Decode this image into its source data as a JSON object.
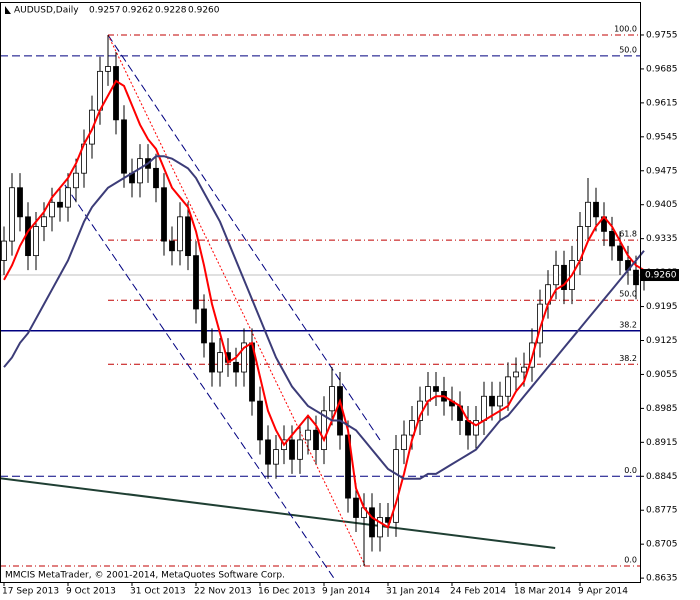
{
  "chart_data": {
    "type": "candlestick",
    "header": {
      "symbol": "AUDUSD,Daily",
      "values": [
        "0.9257",
        "0.9262",
        "0.9228",
        "0.9260"
      ]
    },
    "footer": "MMCIS MetaTrader, © 2001-2014, MetaQuotes Software Corp.",
    "categories": [
      "17 Sep 2013",
      null,
      null,
      null,
      null,
      null,
      null,
      null,
      "9 Oct 2013",
      null,
      null,
      null,
      null,
      null,
      null,
      null,
      "31 Oct 2013",
      null,
      null,
      null,
      null,
      null,
      null,
      null,
      "22 Nov 2013",
      null,
      null,
      null,
      null,
      null,
      null,
      null,
      "16 Dec 2013",
      null,
      null,
      null,
      null,
      null,
      null,
      null,
      "9 Jan 2014",
      null,
      null,
      null,
      null,
      null,
      null,
      null,
      "31 Jan 2014",
      null,
      null,
      null,
      null,
      null,
      null,
      null,
      "24 Feb 2014",
      null,
      null,
      null,
      null,
      null,
      null,
      null,
      "18 Mar 2014",
      null,
      null,
      null,
      null,
      null,
      null,
      null,
      "9 Apr 2014",
      null,
      null,
      null,
      null,
      null,
      null,
      null,
      null
    ],
    "open": [
      0.929,
      0.933,
      0.944,
      0.938,
      0.93,
      0.936,
      0.938,
      0.941,
      0.94,
      0.944,
      0.947,
      0.953,
      0.96,
      0.968,
      0.969,
      0.958,
      0.947,
      0.945,
      0.95,
      0.948,
      0.944,
      0.933,
      0.931,
      0.938,
      0.93,
      0.919,
      0.912,
      0.906,
      0.91,
      0.908,
      0.906,
      0.912,
      0.9,
      0.892,
      0.887,
      0.89,
      0.892,
      0.888,
      0.892,
      0.894,
      0.89,
      0.898,
      0.903,
      0.893,
      0.88,
      0.876,
      0.878,
      0.872,
      0.876,
      0.875,
      0.89,
      0.893,
      0.896,
      0.9,
      0.903,
      0.902,
      0.9,
      0.899,
      0.896,
      0.893,
      0.896,
      0.901,
      0.899,
      0.901,
      0.905,
      0.906,
      0.907,
      0.912,
      0.92,
      0.924,
      0.928,
      0.923,
      0.929,
      0.936,
      0.941,
      0.938,
      0.935,
      0.932,
      0.929,
      0.927,
      0.9257
    ],
    "high": [
      0.936,
      0.947,
      0.947,
      0.941,
      0.939,
      0.941,
      0.944,
      0.944,
      0.947,
      0.95,
      0.956,
      0.963,
      0.971,
      0.9755,
      0.972,
      0.961,
      0.95,
      0.953,
      0.953,
      0.951,
      0.947,
      0.936,
      0.941,
      0.941,
      0.933,
      0.922,
      0.915,
      0.913,
      0.913,
      0.911,
      0.915,
      0.915,
      0.903,
      0.895,
      0.893,
      0.895,
      0.895,
      0.895,
      0.897,
      0.897,
      0.901,
      0.907,
      0.906,
      0.896,
      0.883,
      0.881,
      0.881,
      0.879,
      0.879,
      0.893,
      0.896,
      0.899,
      0.903,
      0.906,
      0.906,
      0.905,
      0.903,
      0.902,
      0.899,
      0.899,
      0.904,
      0.904,
      0.904,
      0.908,
      0.909,
      0.91,
      0.915,
      0.923,
      0.927,
      0.931,
      0.931,
      0.932,
      0.939,
      0.946,
      0.944,
      0.941,
      0.938,
      0.935,
      0.932,
      0.93,
      0.9262
    ],
    "low": [
      0.926,
      0.93,
      0.935,
      0.927,
      0.927,
      0.933,
      0.935,
      0.937,
      0.937,
      0.941,
      0.944,
      0.95,
      0.957,
      0.965,
      0.955,
      0.944,
      0.942,
      0.942,
      0.945,
      0.941,
      0.93,
      0.928,
      0.928,
      0.927,
      0.916,
      0.909,
      0.903,
      0.903,
      0.905,
      0.903,
      0.903,
      0.897,
      0.889,
      0.884,
      0.884,
      0.887,
      0.885,
      0.885,
      0.889,
      0.887,
      0.887,
      0.895,
      0.89,
      0.877,
      0.873,
      0.866,
      0.869,
      0.869,
      0.872,
      0.872,
      0.887,
      0.89,
      0.893,
      0.897,
      0.899,
      0.897,
      0.896,
      0.893,
      0.89,
      0.89,
      0.893,
      0.896,
      0.896,
      0.898,
      0.902,
      0.903,
      0.904,
      0.909,
      0.917,
      0.921,
      0.92,
      0.92,
      0.926,
      0.933,
      0.935,
      0.932,
      0.929,
      0.926,
      0.924,
      0.921,
      0.9228
    ],
    "close": [
      0.933,
      0.944,
      0.938,
      0.93,
      0.936,
      0.938,
      0.941,
      0.94,
      0.944,
      0.947,
      0.953,
      0.96,
      0.968,
      0.969,
      0.958,
      0.947,
      0.945,
      0.95,
      0.948,
      0.944,
      0.933,
      0.931,
      0.938,
      0.93,
      0.919,
      0.912,
      0.906,
      0.91,
      0.908,
      0.906,
      0.912,
      0.9,
      0.892,
      0.887,
      0.89,
      0.892,
      0.888,
      0.892,
      0.894,
      0.89,
      0.898,
      0.903,
      0.893,
      0.88,
      0.876,
      0.878,
      0.872,
      0.876,
      0.875,
      0.89,
      0.893,
      0.896,
      0.9,
      0.903,
      0.902,
      0.9,
      0.899,
      0.896,
      0.893,
      0.896,
      0.901,
      0.899,
      0.901,
      0.905,
      0.906,
      0.907,
      0.912,
      0.92,
      0.924,
      0.928,
      0.923,
      0.929,
      0.936,
      0.941,
      0.938,
      0.935,
      0.932,
      0.929,
      0.927,
      0.924,
      0.926
    ],
    "indicators": [
      {
        "color": "#ff0000",
        "values": [
          0.925,
          0.928,
          0.932,
          0.935,
          0.937,
          0.939,
          0.942,
          0.944,
          0.946,
          0.949,
          0.953,
          0.956,
          0.96,
          0.963,
          0.966,
          0.965,
          0.961,
          0.957,
          0.954,
          0.952,
          0.948,
          0.944,
          0.942,
          0.94,
          0.935,
          0.928,
          0.92,
          0.914,
          0.908,
          0.909,
          0.911,
          0.912,
          0.905,
          0.898,
          0.894,
          0.891,
          0.893,
          0.895,
          0.897,
          0.895,
          0.892,
          0.896,
          0.9,
          0.894,
          0.882,
          0.878,
          0.876,
          0.875,
          0.874,
          0.879,
          0.885,
          0.892,
          0.897,
          0.9,
          0.901,
          0.901,
          0.9,
          0.899,
          0.896,
          0.895,
          0.896,
          0.897,
          0.898,
          0.899,
          0.902,
          0.904,
          0.909,
          0.915,
          0.92,
          0.923,
          0.924,
          0.926,
          0.929,
          0.933,
          0.936,
          0.938,
          0.936,
          0.933,
          0.93,
          0.928,
          0.927
        ]
      },
      {
        "color": "#3c3c78",
        "values": [
          0.907,
          0.909,
          0.912,
          0.914,
          0.917,
          0.92,
          0.923,
          0.926,
          0.929,
          0.933,
          0.937,
          0.94,
          0.942,
          0.944,
          0.945,
          0.946,
          0.947,
          0.948,
          0.949,
          0.9505,
          0.9505,
          0.95,
          0.949,
          0.948,
          0.946,
          0.943,
          0.94,
          0.937,
          0.933,
          0.929,
          0.925,
          0.921,
          0.917,
          0.913,
          0.909,
          0.906,
          0.903,
          0.901,
          0.899,
          0.898,
          0.897,
          0.896,
          0.896,
          0.895,
          0.894,
          0.892,
          0.89,
          0.888,
          0.886,
          0.885,
          0.884,
          0.884,
          0.884,
          0.885,
          0.885,
          0.886,
          0.887,
          0.888,
          0.889,
          0.89,
          0.892,
          0.894,
          0.896,
          0.897,
          0.899,
          0.901,
          0.903,
          0.905,
          0.907,
          0.909,
          0.911,
          0.913,
          0.915,
          0.917,
          0.919,
          0.921,
          0.923,
          0.925,
          0.927,
          0.929,
          0.931
        ]
      }
    ],
    "levels": [
      {
        "value": 0.9755,
        "label": "100.0",
        "color": "#c00000",
        "style": "dashdot",
        "from": 13
      },
      {
        "value": 0.9712,
        "label": "50.0",
        "color": "#000080",
        "style": "dash",
        "from": -0.5
      },
      {
        "value": 0.9332,
        "label": "61.8",
        "color": "#c00000",
        "style": "dashdot",
        "from": 13
      },
      {
        "value": 0.9208,
        "label": "50.0",
        "color": "#c00000",
        "style": "dashdot",
        "from": 13
      },
      {
        "value": 0.9145,
        "label": "38.2",
        "color": "#000080",
        "style": "solid",
        "from": -0.5
      },
      {
        "value": 0.9076,
        "label": "38.2",
        "color": "#c00000",
        "style": "dashdot",
        "from": 13
      },
      {
        "value": 0.8845,
        "label": "0.0",
        "color": "#000080",
        "style": "dash",
        "from": -0.5
      },
      {
        "value": 0.866,
        "label": "0.0",
        "color": "#c00000",
        "style": "dashdot",
        "from": -0.5
      }
    ],
    "trendlines": [
      {
        "color": "#1f3f33",
        "style": "solid",
        "x": [
          -0.5,
          68.9
        ],
        "y": [
          0.8841,
          0.8697
        ]
      },
      {
        "color": "#000080",
        "style": "dash",
        "x": [
          13,
          47
        ],
        "y": [
          0.9755,
          0.892
        ]
      },
      {
        "color": "#000080",
        "style": "dash",
        "x": [
          7.6,
          41.4
        ],
        "y": [
          0.9446,
          0.8631
        ]
      },
      {
        "color": "#ff0000",
        "style": "dot",
        "x": [
          13,
          45.1
        ],
        "y": [
          0.9755,
          0.8662
        ]
      }
    ],
    "current_price": {
      "value": 0.926,
      "label": "0.9260"
    },
    "ylim": [
      0.8627,
      0.9823
    ],
    "yticks": [
      0.9755,
      0.9685,
      0.9615,
      0.9545,
      0.9475,
      0.9405,
      0.9335,
      0.9265,
      0.9195,
      0.9125,
      0.9055,
      0.8985,
      0.8915,
      0.8845,
      0.8775,
      0.8705,
      0.8635
    ]
  }
}
